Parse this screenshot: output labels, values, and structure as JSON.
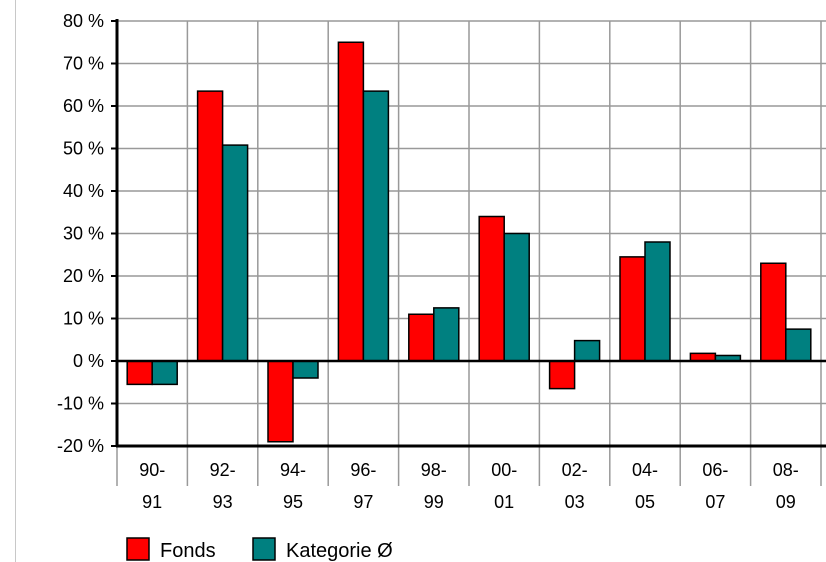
{
  "chart_data": {
    "type": "bar",
    "categories": [
      [
        "90-",
        "91"
      ],
      [
        "92-",
        "93"
      ],
      [
        "94-",
        "95"
      ],
      [
        "96-",
        "97"
      ],
      [
        "98-",
        "99"
      ],
      [
        "00-",
        "01"
      ],
      [
        "02-",
        "03"
      ],
      [
        "04-",
        "05"
      ],
      [
        "06-",
        "07"
      ],
      [
        "08-",
        "09"
      ]
    ],
    "series": [
      {
        "name": "Fonds",
        "color": "#ff0000",
        "values": [
          -5.5,
          63.5,
          -19,
          75,
          11,
          34,
          -6.5,
          24.5,
          1.8,
          23
        ]
      },
      {
        "name": "Kategorie Ø",
        "color": "#008080",
        "values": [
          -5.5,
          50.8,
          -4,
          63.5,
          12.5,
          30,
          4.8,
          28,
          1.3,
          7.5
        ]
      }
    ],
    "ylim": [
      -20,
      80
    ],
    "yticks": [
      80,
      70,
      60,
      50,
      40,
      30,
      20,
      10,
      0,
      -10,
      -20
    ],
    "ytick_labels": [
      "80 %",
      "70 %",
      "60 %",
      "50 %",
      "40 %",
      "30 %",
      "20 %",
      "10 %",
      "0 %",
      "-10 %",
      "-20 %"
    ],
    "grid": true,
    "legend_position": "bottom-left"
  }
}
